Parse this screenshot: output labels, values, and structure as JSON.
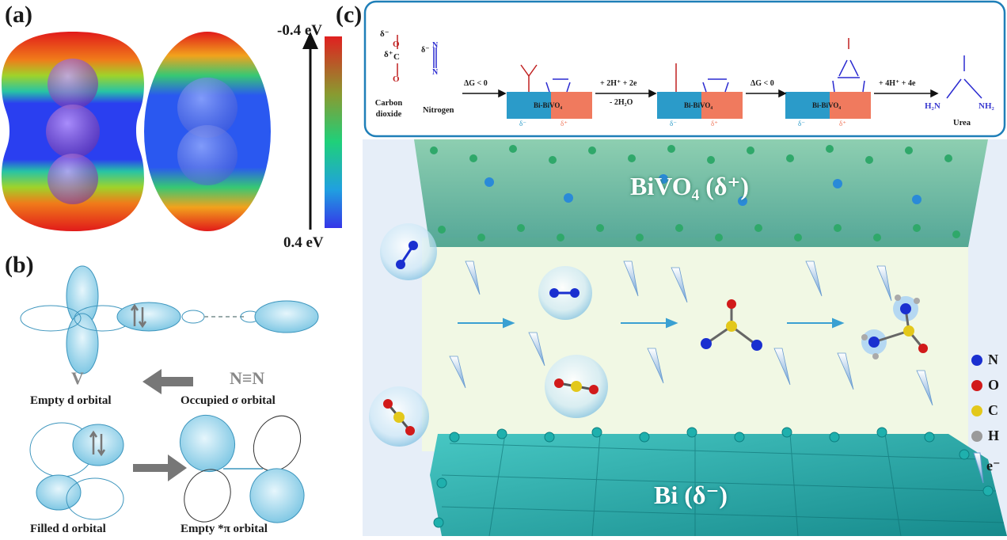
{
  "panel_a": {
    "label": "(a)",
    "scale_top": "-0.4 eV",
    "scale_bottom": "0.4 eV"
  },
  "panel_b": {
    "label": "(b)",
    "atom_v": "V",
    "molecule_nn": "N≡N",
    "empty_d": "Empty d orbital",
    "occupied_sigma": "Occupied σ orbital",
    "filled_d": "Filled d orbital",
    "empty_pi": "Empty *π orbital"
  },
  "panel_c": {
    "label": "(c)",
    "scheme": {
      "co2_delta_minus": "δ⁻",
      "co2_delta_plus": "δ⁺",
      "co2_atom_c": "C",
      "co2_atom_o": "O",
      "n2_delta_minus": "δ⁻",
      "n2_atom": "N",
      "carbon_dioxide": "Carbon dioxide",
      "nitrogen": "Nitrogen",
      "step1": "ΔG < 0",
      "step2_top": "+ 2H⁺ + 2e",
      "step2_bottom": "- 2H₂O",
      "step3": "ΔG < 0",
      "step4": "+ 4H⁺ + 4e",
      "catalyst": "Bi-BiVO₄",
      "delta_minus": "δ⁻",
      "delta_plus": "δ⁺",
      "urea": "Urea",
      "h2n": "H₂N",
      "nh2": "NH₂"
    },
    "bivo4_label": "BiVO₄ (δ⁺)",
    "bi_label": "Bi (δ⁻)",
    "legend": [
      "N",
      "O",
      "C",
      "H",
      "e⁻"
    ]
  },
  "colors": {
    "nitrogen": "#1a2fd0",
    "oxygen": "#d11a1a",
    "carbon": "#e3c81b",
    "hydrogen": "#9a9a9a",
    "bi_teal": "#1fa6a6",
    "bivo4_green": "#2fa86a",
    "scheme_blue": "#2b9bc9",
    "scheme_red": "#f07a5e",
    "frame_blue": "#1f7fb8"
  }
}
